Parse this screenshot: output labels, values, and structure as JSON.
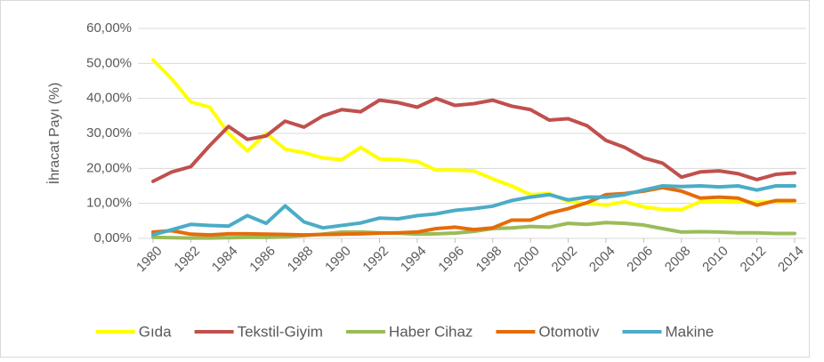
{
  "chart_data": {
    "type": "line",
    "y_label": "İhracat Payı (%)",
    "x": [
      1980,
      1981,
      1982,
      1983,
      1984,
      1985,
      1986,
      1987,
      1988,
      1989,
      1990,
      1991,
      1992,
      1993,
      1994,
      1995,
      1996,
      1997,
      1998,
      1999,
      2000,
      2001,
      2002,
      2003,
      2004,
      2005,
      2006,
      2007,
      2008,
      2009,
      2010,
      2011,
      2012,
      2013,
      2014
    ],
    "xlim": [
      1980,
      2014
    ],
    "xticks": [
      1980,
      1982,
      1984,
      1986,
      1988,
      1990,
      1992,
      1994,
      1996,
      1998,
      2000,
      2002,
      2004,
      2006,
      2008,
      2010,
      2012,
      2014
    ],
    "ylim": [
      0,
      60
    ],
    "yticks": [
      {
        "value": 0,
        "label": "0,00%"
      },
      {
        "value": 10,
        "label": "10,00%"
      },
      {
        "value": 20,
        "label": "20,00%"
      },
      {
        "value": 30,
        "label": "30,00%"
      },
      {
        "value": 40,
        "label": "40,00%"
      },
      {
        "value": 50,
        "label": "50,00%"
      },
      {
        "value": 60,
        "label": "60,00%"
      }
    ],
    "grid": true,
    "legend": "bottom",
    "series": [
      {
        "name": "Gıda",
        "color": "#ffff00",
        "values": [
          51,
          45.5,
          39,
          37.5,
          30,
          25,
          30,
          25.5,
          24.5,
          23,
          22.5,
          26,
          22.7,
          22.5,
          22,
          19.5,
          19.5,
          19.3,
          17,
          15,
          12.5,
          12.8,
          10.5,
          10,
          9.5,
          10.5,
          9,
          8.3,
          8.2,
          10.5,
          10.5,
          10.5,
          10.3,
          10.5,
          10.7
        ]
      },
      {
        "name": "Tekstil-Giyim",
        "color": "#c0504d",
        "values": [
          16.3,
          19,
          20.5,
          26.5,
          32,
          28.3,
          29.3,
          33.5,
          31.8,
          35,
          36.8,
          36.2,
          39.5,
          38.8,
          37.5,
          40,
          38,
          38.5,
          39.5,
          37.8,
          36.8,
          33.8,
          34.2,
          32.2,
          28,
          26,
          23,
          21.5,
          17.5,
          19,
          19.3,
          18.5,
          16.8,
          18.3,
          18.7
        ]
      },
      {
        "name": "Haber Cihaz",
        "color": "#9bbb59",
        "values": [
          0.3,
          0.2,
          0.1,
          0.1,
          0.2,
          0.3,
          0.3,
          0.4,
          0.8,
          1.2,
          1.8,
          1.8,
          1.6,
          1.5,
          1.2,
          1.3,
          1.5,
          2.0,
          2.8,
          3.0,
          3.4,
          3.2,
          4.3,
          4.0,
          4.5,
          4.3,
          3.8,
          2.8,
          1.8,
          1.9,
          1.8,
          1.6,
          1.6,
          1.4,
          1.4
        ]
      },
      {
        "name": "Otomotiv",
        "color": "#e46c0a",
        "values": [
          1.8,
          2.2,
          1.2,
          1.0,
          1.3,
          1.3,
          1.2,
          1.1,
          1.0,
          1.1,
          1.2,
          1.3,
          1.5,
          1.6,
          1.8,
          2.8,
          3.2,
          2.5,
          3.0,
          5.2,
          5.2,
          7.2,
          8.5,
          10.2,
          12.5,
          12.8,
          13.5,
          14.5,
          13.5,
          11.5,
          11.8,
          11.5,
          9.5,
          10.8,
          10.8
        ]
      },
      {
        "name": "Makine",
        "color": "#4bacc6",
        "values": [
          1.0,
          2.5,
          4.0,
          3.7,
          3.5,
          6.5,
          4.3,
          9.3,
          4.7,
          3.0,
          3.7,
          4.4,
          5.8,
          5.6,
          6.5,
          7.0,
          8.0,
          8.5,
          9.2,
          10.8,
          11.8,
          12.5,
          11.0,
          11.8,
          11.8,
          12.5,
          13.8,
          15.0,
          14.8,
          15.0,
          14.7,
          15.0,
          13.8,
          15.0,
          15.0
        ]
      }
    ]
  }
}
